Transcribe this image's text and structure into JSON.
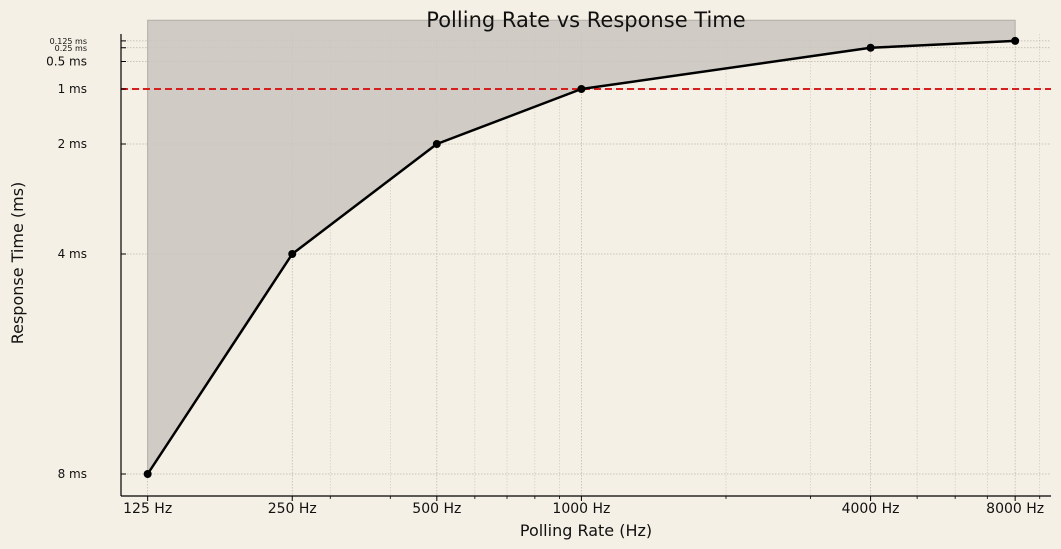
{
  "chart_data": {
    "type": "line",
    "title": "Polling Rate vs Response Time",
    "xlabel": "Polling Rate (Hz)",
    "ylabel": "Response Time (ms)",
    "x_scale": "log2",
    "y_scale": "linear",
    "xlim": [
      110,
      9500
    ],
    "ylim": [
      0.0,
      8.4
    ],
    "x_ticks": [
      {
        "value": 125,
        "label": "125 Hz"
      },
      {
        "value": 250,
        "label": "250 Hz"
      },
      {
        "value": 500,
        "label": "500 Hz"
      },
      {
        "value": 1000,
        "label": "1000 Hz"
      },
      {
        "value": 4000,
        "label": "4000 Hz"
      },
      {
        "value": 8000,
        "label": "8000 Hz"
      }
    ],
    "y_ticks": [
      {
        "value": 0.125,
        "label": "0.125 ms",
        "small": true
      },
      {
        "value": 0.25,
        "label": "0.25 ms",
        "small": true
      },
      {
        "value": 0.5,
        "label": "0.5 ms",
        "small": false
      },
      {
        "value": 1,
        "label": "1 ms",
        "small": false
      },
      {
        "value": 2,
        "label": "2 ms",
        "small": false
      },
      {
        "value": 4,
        "label": "4 ms",
        "small": false
      },
      {
        "value": 8,
        "label": "8 ms",
        "small": false
      }
    ],
    "x": [
      125,
      250,
      500,
      1000,
      4000,
      8000
    ],
    "series": [
      {
        "values": [
          8,
          4,
          2,
          1,
          0.25,
          0.125
        ],
        "color": "#000000"
      }
    ],
    "fill": {
      "from": 125,
      "to": 8000,
      "baseline": -0.25,
      "color": "#c9c6bf"
    },
    "reference_line": {
      "y": 1,
      "style": "dashed",
      "color": "#d62020"
    },
    "grid": true,
    "minor_x_grid": [
      300,
      400,
      600,
      700,
      800,
      900,
      2000,
      3000,
      5000,
      6000,
      7000,
      9000
    ],
    "colors": {
      "background": "#f5f0e5",
      "line": "#000000",
      "grid": "#b8b4a8",
      "fill": "#c9c6bf",
      "reference": "#d62020"
    }
  }
}
